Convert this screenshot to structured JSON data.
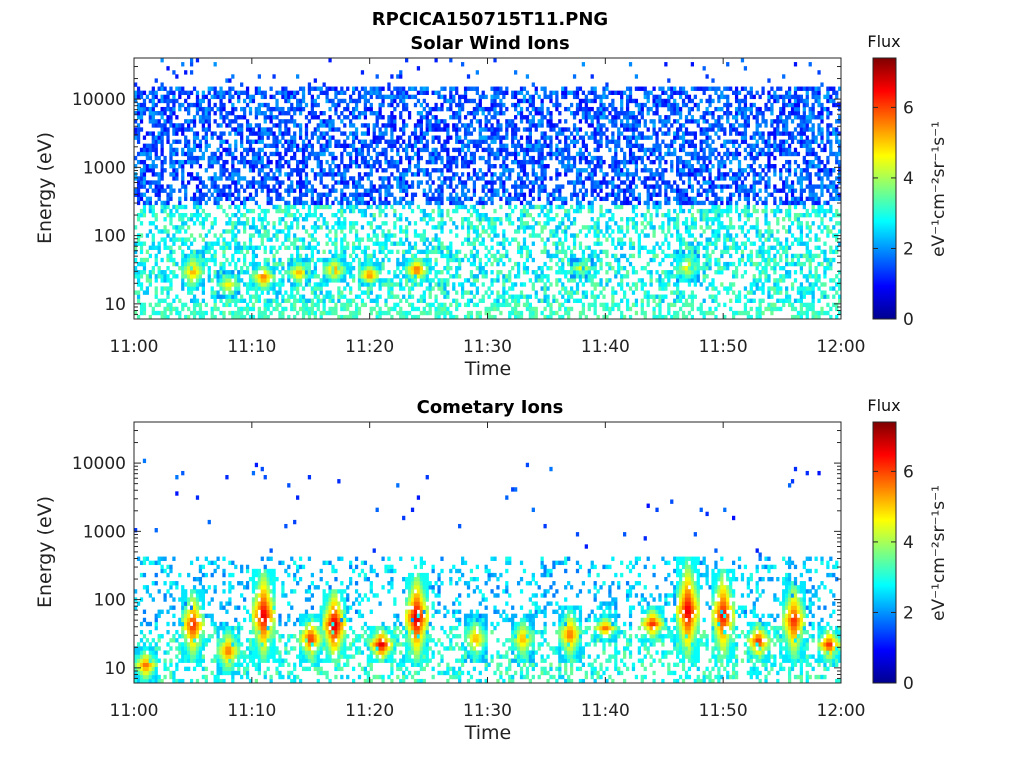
{
  "figure_title": "RPCICA150715T11.PNG",
  "colorbar": {
    "title": "Flux",
    "unit": "eV⁻¹cm⁻²sr⁻¹s⁻¹",
    "range": [
      0,
      7.4
    ],
    "ticks": [
      0,
      2,
      4,
      6
    ],
    "colormap": "jet"
  },
  "chart_data": [
    {
      "type": "heatmap",
      "title": "Solar Wind Ions",
      "xlabel": "Time",
      "ylabel": "Energy (eV)",
      "x_range": [
        "11:00",
        "12:00"
      ],
      "x_ticks": [
        "11:00",
        "11:10",
        "11:20",
        "11:30",
        "11:40",
        "11:50",
        "12:00"
      ],
      "y_scale": "log",
      "y_range": [
        6,
        40000
      ],
      "y_ticks": [
        10,
        100,
        1000,
        10000
      ],
      "background": "dense scattered low flux (≈1–2) from ~300 eV to ~15000 eV, flux ≈2.5–3.5 from 10 to 300 eV",
      "features": [
        {
          "time": "11:05",
          "energy_low_eV": 15,
          "energy_high_eV": 60,
          "peak_flux": 5.5
        },
        {
          "time": "11:08",
          "energy_low_eV": 12,
          "energy_high_eV": 30,
          "peak_flux": 5.0
        },
        {
          "time": "11:11",
          "energy_low_eV": 15,
          "energy_high_eV": 40,
          "peak_flux": 6.0
        },
        {
          "time": "11:14",
          "energy_low_eV": 18,
          "energy_high_eV": 45,
          "peak_flux": 5.5
        },
        {
          "time": "11:17",
          "energy_low_eV": 20,
          "energy_high_eV": 50,
          "peak_flux": 5.8
        },
        {
          "time": "11:20",
          "energy_low_eV": 18,
          "energy_high_eV": 40,
          "peak_flux": 6.0
        },
        {
          "time": "11:24",
          "energy_low_eV": 20,
          "energy_high_eV": 50,
          "peak_flux": 6.2
        },
        {
          "time": "11:38",
          "energy_low_eV": 25,
          "energy_high_eV": 45,
          "peak_flux": 4.8
        },
        {
          "time": "11:47",
          "energy_low_eV": 20,
          "energy_high_eV": 60,
          "peak_flux": 5.0
        }
      ]
    },
    {
      "type": "heatmap",
      "title": "Cometary Ions",
      "xlabel": "Time",
      "ylabel": "Energy (eV)",
      "x_range": [
        "11:00",
        "12:00"
      ],
      "x_ticks": [
        "11:00",
        "11:10",
        "11:20",
        "11:30",
        "11:40",
        "11:50",
        "12:00"
      ],
      "y_scale": "log",
      "y_range": [
        6,
        40000
      ],
      "y_ticks": [
        10,
        100,
        1000,
        10000
      ],
      "background": "sparse flux ≈2–3 from 40 to 400 eV, isolated low-flux points above 1000 eV",
      "features": [
        {
          "time": "11:01",
          "energy_low_eV": 6,
          "energy_high_eV": 20,
          "peak_flux": 6.0
        },
        {
          "time": "11:05",
          "energy_low_eV": 12,
          "energy_high_eV": 150,
          "peak_flux": 6.5
        },
        {
          "time": "11:08",
          "energy_low_eV": 8,
          "energy_high_eV": 40,
          "peak_flux": 6.0
        },
        {
          "time": "11:11",
          "energy_low_eV": 12,
          "energy_high_eV": 300,
          "peak_flux": 7.0
        },
        {
          "time": "11:15",
          "energy_low_eV": 12,
          "energy_high_eV": 60,
          "peak_flux": 6.5
        },
        {
          "time": "11:17",
          "energy_low_eV": 12,
          "energy_high_eV": 150,
          "peak_flux": 7.2
        },
        {
          "time": "11:21",
          "energy_low_eV": 12,
          "energy_high_eV": 40,
          "peak_flux": 7.0
        },
        {
          "time": "11:24",
          "energy_low_eV": 12,
          "energy_high_eV": 250,
          "peak_flux": 7.2
        },
        {
          "time": "11:29",
          "energy_low_eV": 12,
          "energy_high_eV": 60,
          "peak_flux": 5.5
        },
        {
          "time": "11:33",
          "energy_low_eV": 12,
          "energy_high_eV": 60,
          "peak_flux": 5.5
        },
        {
          "time": "11:37",
          "energy_low_eV": 12,
          "energy_high_eV": 80,
          "peak_flux": 6.0
        },
        {
          "time": "11:40",
          "energy_low_eV": 25,
          "energy_high_eV": 60,
          "peak_flux": 6.0
        },
        {
          "time": "11:44",
          "energy_low_eV": 25,
          "energy_high_eV": 80,
          "peak_flux": 6.5
        },
        {
          "time": "11:47",
          "energy_low_eV": 12,
          "energy_high_eV": 400,
          "peak_flux": 7.0
        },
        {
          "time": "11:50",
          "energy_low_eV": 12,
          "energy_high_eV": 300,
          "peak_flux": 6.8
        },
        {
          "time": "11:53",
          "energy_low_eV": 12,
          "energy_high_eV": 50,
          "peak_flux": 6.5
        },
        {
          "time": "11:56",
          "energy_low_eV": 12,
          "energy_high_eV": 200,
          "peak_flux": 6.5
        },
        {
          "time": "11:59",
          "energy_low_eV": 12,
          "energy_high_eV": 40,
          "peak_flux": 6.5
        }
      ]
    }
  ]
}
